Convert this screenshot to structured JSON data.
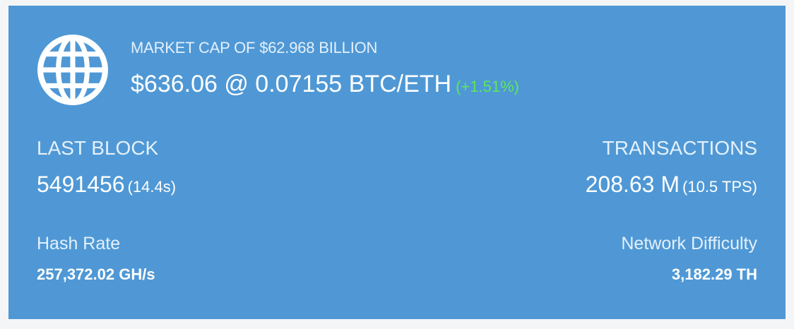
{
  "market": {
    "icon": "globe-icon",
    "cap_label": "MARKET CAP OF $62.968 BILLION",
    "price_text": "$636.06 @ 0.07155 BTC/ETH",
    "change_text": "(+1.51%)",
    "change_color": "#5ee65e"
  },
  "last_block": {
    "title": "LAST BLOCK",
    "value": "5491456",
    "sub": "(14.4s)"
  },
  "transactions": {
    "title": "TRANSACTIONS",
    "value": "208.63 M",
    "sub": "(10.5 TPS)"
  },
  "hash_rate": {
    "title": "Hash Rate",
    "value": "257,372.02 GH/s"
  },
  "network_difficulty": {
    "title": "Network Difficulty",
    "value": "3,182.29 TH"
  },
  "colors": {
    "card_background": "#4f98d5",
    "page_background": "#f4f5f7",
    "text": "#ffffff"
  }
}
